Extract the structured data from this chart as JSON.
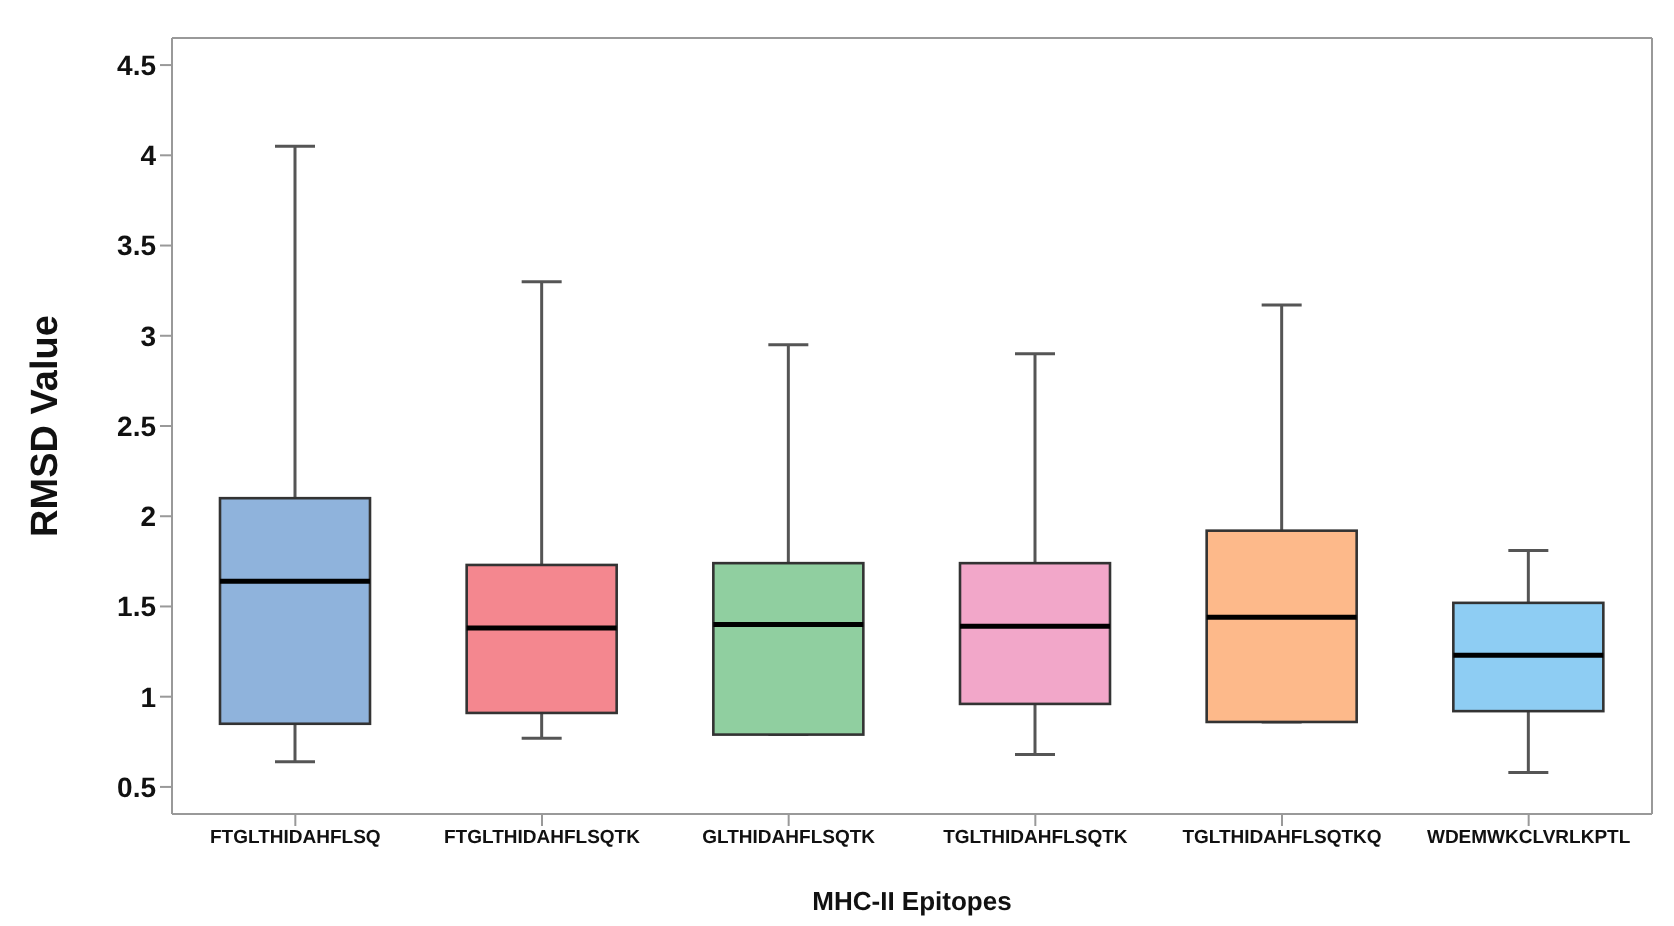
{
  "chart_data": {
    "type": "box",
    "xlabel": "MHC-II Epitopes",
    "ylabel": "RMSD Value",
    "categories": [
      "FTGLTHIDAHFLSQ",
      "FTGLTHIDAHFLSQTK",
      "GLTHIDAHFLSQTK",
      "TGLTHIDAHFLSQTK",
      "TGLTHIDAHFLSQTKQ",
      "WDEMWKCLVRLKPTL"
    ],
    "colors": [
      "#8fb3dc",
      "#f4878f",
      "#90cfa0",
      "#f2a7c9",
      "#fdb98a",
      "#8ecdf3"
    ],
    "boxes": [
      {
        "low": 0.64,
        "q1": 0.85,
        "median": 1.64,
        "q3": 2.1,
        "high": 4.05
      },
      {
        "low": 0.77,
        "q1": 0.91,
        "median": 1.38,
        "q3": 1.73,
        "high": 3.3
      },
      {
        "low": 0.79,
        "q1": 0.79,
        "median": 1.4,
        "q3": 1.74,
        "high": 2.95
      },
      {
        "low": 0.68,
        "q1": 0.96,
        "median": 1.39,
        "q3": 1.74,
        "high": 2.9
      },
      {
        "low": 0.86,
        "q1": 0.86,
        "median": 1.44,
        "q3": 1.92,
        "high": 3.17
      },
      {
        "low": 0.58,
        "q1": 0.92,
        "median": 1.23,
        "q3": 1.52,
        "high": 1.81
      }
    ],
    "ylim": [
      0.35,
      4.65
    ],
    "yticks": [
      0.5,
      1,
      1.5,
      2,
      2.5,
      3,
      3.5,
      4,
      4.5
    ],
    "grid": false,
    "legend": false
  }
}
